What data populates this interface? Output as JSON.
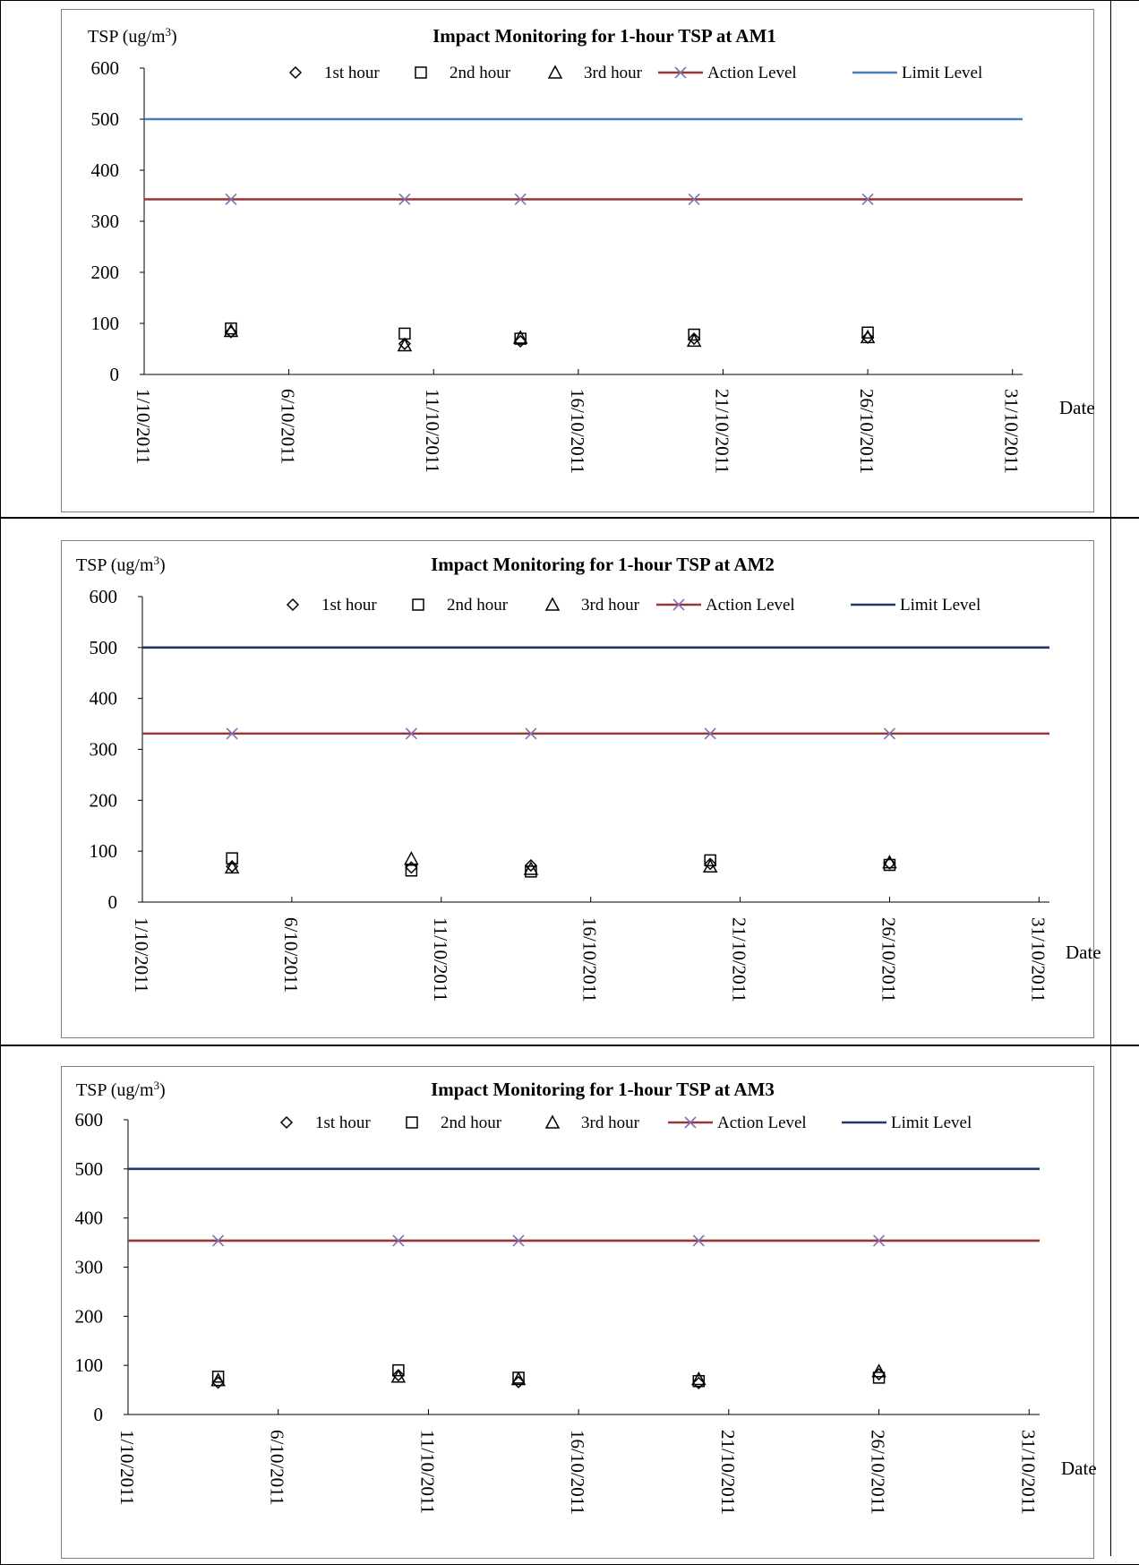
{
  "page": {
    "background": "#ffffff"
  },
  "chart_data": [
    {
      "type": "scatter",
      "title": "Impact Monitoring for 1-hour TSP at AM1",
      "ylabel": "TSP (ug/m3)",
      "ylabel_main": "TSP (ug/m",
      "ylabel_sup": "3",
      "ylabel_close": ")",
      "xlabel": "Date",
      "ylim": [
        0,
        600
      ],
      "yticks": [
        0,
        100,
        200,
        300,
        400,
        500,
        600
      ],
      "xlim": [
        "1/10/2011",
        "31/10/2011"
      ],
      "xticks": [
        "1/10/2011",
        "6/10/2011",
        "11/10/2011",
        "16/10/2011",
        "21/10/2011",
        "26/10/2011",
        "31/10/2011"
      ],
      "legend_position": "top",
      "grid": false,
      "dates": [
        "4/10/2011",
        "10/10/2011",
        "14/10/2011",
        "20/10/2011",
        "26/10/2011"
      ],
      "series": [
        {
          "name": "1st hour",
          "marker": "diamond",
          "values": [
            83,
            60,
            65,
            70,
            72
          ]
        },
        {
          "name": "2nd hour",
          "marker": "square",
          "values": [
            90,
            80,
            70,
            78,
            82
          ]
        },
        {
          "name": "3rd hour",
          "marker": "triangle",
          "values": [
            85,
            57,
            72,
            66,
            73
          ]
        },
        {
          "name": "Action Level",
          "marker": "x",
          "line": true,
          "color": "#953735",
          "values": [
            343,
            343,
            343,
            343,
            343
          ]
        },
        {
          "name": "Limit Level",
          "marker": "none",
          "line": true,
          "color": "#4a7ebb",
          "constant": 500
        }
      ]
    },
    {
      "type": "scatter",
      "title": "Impact Monitoring for 1-hour TSP at AM2",
      "ylabel": "TSP (ug/m3)",
      "ylabel_main": "TSP (ug/m",
      "ylabel_sup": "3",
      "ylabel_close": ")",
      "xlabel": "Date",
      "ylim": [
        0,
        600
      ],
      "yticks": [
        0,
        100,
        200,
        300,
        400,
        500,
        600
      ],
      "xlim": [
        "1/10/2011",
        "31/10/2011"
      ],
      "xticks": [
        "1/10/2011",
        "6/10/2011",
        "11/10/2011",
        "16/10/2011",
        "21/10/2011",
        "26/10/2011",
        "31/10/2011"
      ],
      "legend_position": "top",
      "grid": false,
      "dates": [
        "4/10/2011",
        "10/10/2011",
        "14/10/2011",
        "20/10/2011",
        "26/10/2011"
      ],
      "series": [
        {
          "name": "1st hour",
          "marker": "diamond",
          "values": [
            70,
            68,
            72,
            75,
            76
          ]
        },
        {
          "name": "2nd hour",
          "marker": "square",
          "values": [
            86,
            62,
            60,
            82,
            73
          ]
        },
        {
          "name": "3rd hour",
          "marker": "triangle",
          "values": [
            68,
            85,
            65,
            70,
            78
          ]
        },
        {
          "name": "Action Level",
          "marker": "x",
          "line": true,
          "color": "#953735",
          "values": [
            331,
            331,
            331,
            331,
            331
          ]
        },
        {
          "name": "Limit Level",
          "marker": "none",
          "line": true,
          "color": "#1f3864",
          "constant": 500
        }
      ]
    },
    {
      "type": "scatter",
      "title": "Impact Monitoring for 1-hour TSP at AM3",
      "ylabel": "TSP (ug/m3)",
      "ylabel_main": "TSP (ug/m",
      "ylabel_sup": "3",
      "ylabel_close": ")",
      "xlabel": "Date",
      "ylim": [
        0,
        600
      ],
      "yticks": [
        0,
        100,
        200,
        300,
        400,
        500,
        600
      ],
      "xlim": [
        "1/10/2011",
        "31/10/2011"
      ],
      "xticks": [
        "1/10/2011",
        "6/10/2011",
        "11/10/2011",
        "16/10/2011",
        "21/10/2011",
        "26/10/2011",
        "31/10/2011"
      ],
      "legend_position": "top",
      "grid": false,
      "dates": [
        "4/10/2011",
        "10/10/2011",
        "14/10/2011",
        "20/10/2011",
        "26/10/2011"
      ],
      "series": [
        {
          "name": "1st hour",
          "marker": "diamond",
          "values": [
            65,
            80,
            66,
            64,
            82
          ]
        },
        {
          "name": "2nd hour",
          "marker": "square",
          "values": [
            77,
            90,
            75,
            68,
            75
          ]
        },
        {
          "name": "3rd hour",
          "marker": "triangle",
          "values": [
            70,
            77,
            72,
            72,
            88
          ]
        },
        {
          "name": "Action Level",
          "marker": "x",
          "line": true,
          "color": "#953735",
          "values": [
            354,
            354,
            354,
            354,
            354
          ]
        },
        {
          "name": "Limit Level",
          "marker": "none",
          "line": true,
          "color": "#1f3864",
          "constant": 500
        }
      ]
    }
  ]
}
